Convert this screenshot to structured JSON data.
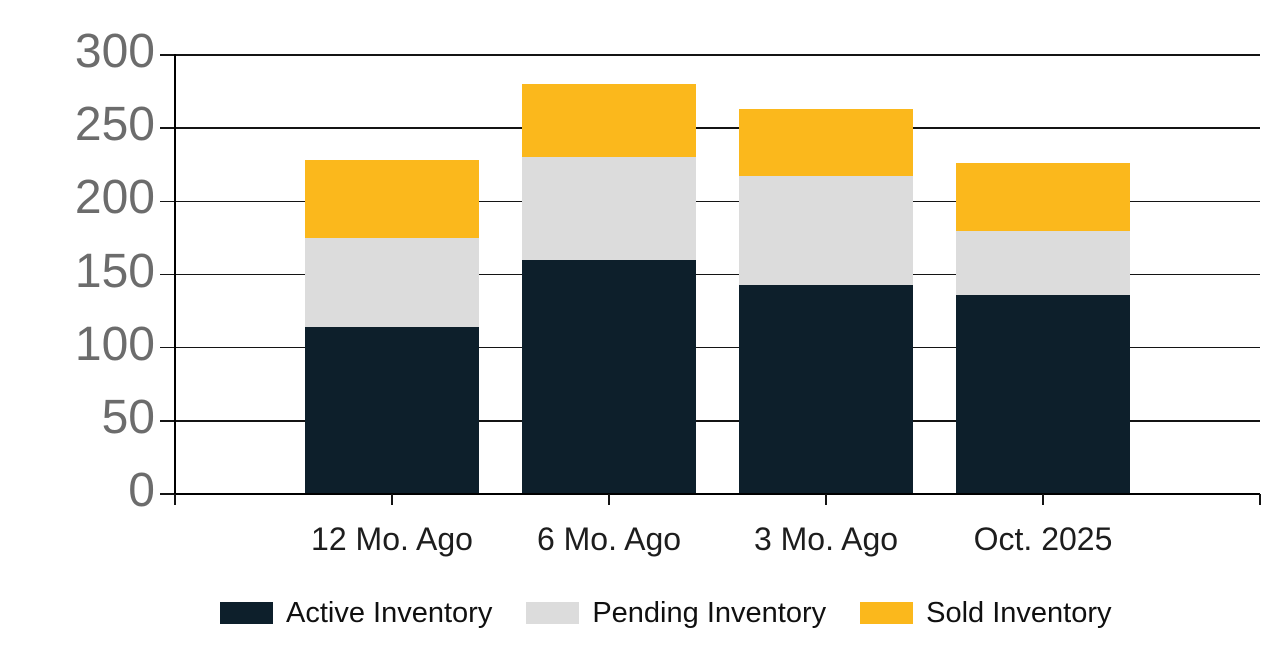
{
  "chart_data": {
    "type": "bar",
    "stacked": true,
    "title": "",
    "xlabel": "",
    "ylabel": "",
    "categories": [
      "12 Mo. Ago",
      "6 Mo. Ago",
      "3 Mo. Ago",
      "Oct. 2025"
    ],
    "series": [
      {
        "name": "Active Inventory",
        "color": "#0d1f2b",
        "values": [
          114,
          160,
          143,
          136
        ]
      },
      {
        "name": "Pending Inventory",
        "color": "#dcdcdc",
        "values": [
          61,
          70,
          74,
          44
        ]
      },
      {
        "name": "Sold Inventory",
        "color": "#fbb81c",
        "values": [
          53,
          50,
          46,
          46
        ]
      }
    ],
    "stack_totals": [
      228,
      280,
      263,
      226
    ],
    "ylim": [
      0,
      300
    ],
    "yticks": [
      0,
      50,
      100,
      150,
      200,
      250,
      300
    ],
    "ytick_labels": [
      "0",
      "50",
      "100",
      "150",
      "200",
      "250",
      "300"
    ],
    "grid": true,
    "legend_position": "bottom"
  },
  "style": {
    "background": "#ffffff",
    "grid_color": "#141414",
    "axis_color": "#000000",
    "y_label_color": "#6c6c6c",
    "x_label_color": "#1d1d1d",
    "legend_text_color": "#101010"
  }
}
